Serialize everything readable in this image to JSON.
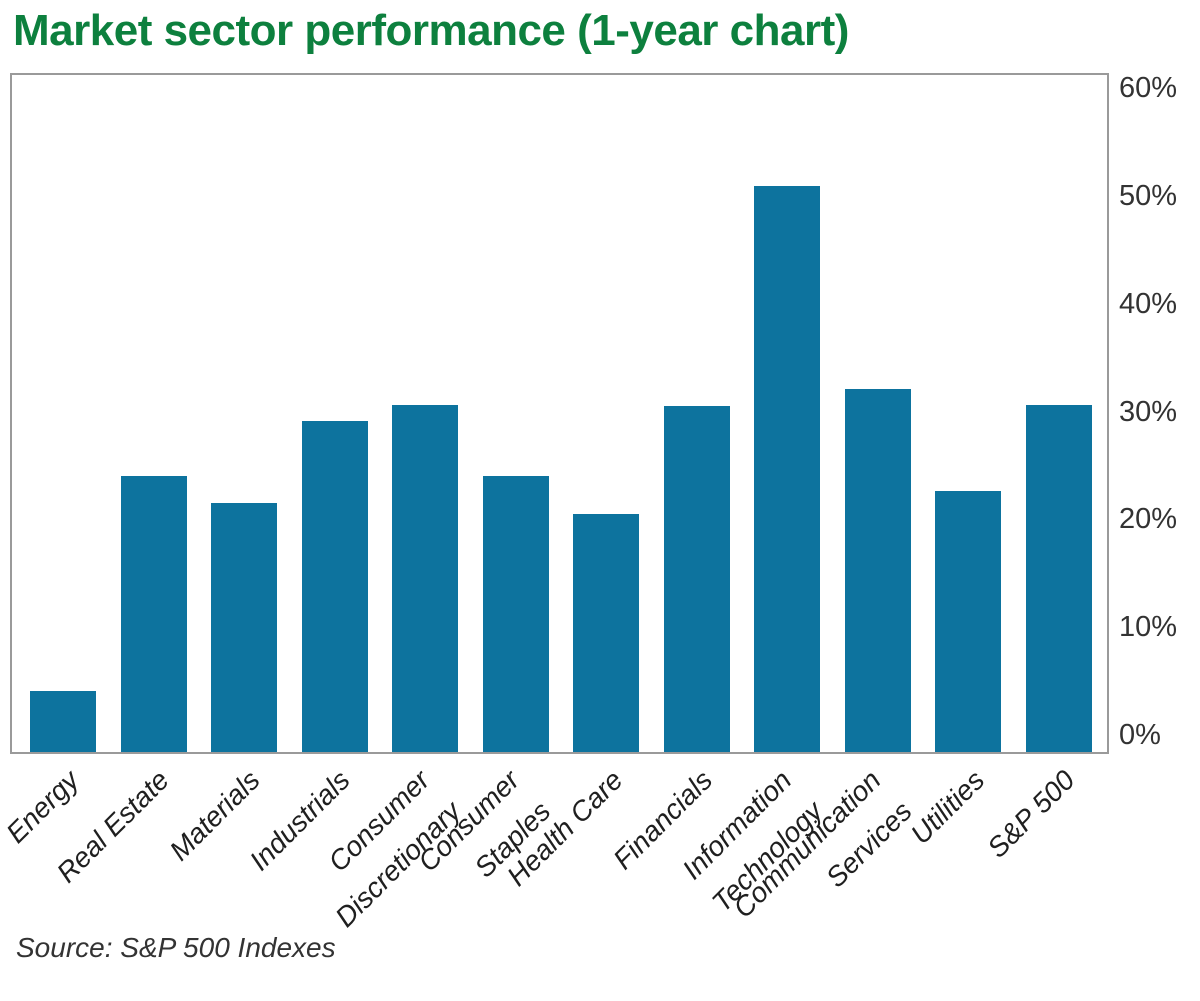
{
  "header": {
    "title": "Market sector performance (1-year chart)"
  },
  "footer": {
    "source": "Source: S&P 500 Indexes"
  },
  "colors": {
    "title_green": "#0d803e",
    "bar_teal": "#0d739e",
    "plot_border": "#9a9a9a",
    "axis_text": "#333333",
    "category_text": "#1f1f1f"
  },
  "chart_data": {
    "type": "bar",
    "title": "Market sector performance (1-year chart)",
    "categories": [
      "Energy",
      "Real Estate",
      "Materials",
      "Industrials",
      "Consumer Discretionary",
      "Consumer Staples",
      "Health Care",
      "Financials",
      "Information Technology",
      "Communication Services",
      "Utilities",
      "S&P 500"
    ],
    "category_lines": [
      [
        "Energy"
      ],
      [
        "Real Estate"
      ],
      [
        "Materials"
      ],
      [
        "Industrials"
      ],
      [
        "Consumer",
        "Discretionary"
      ],
      [
        "Consumer",
        "Staples"
      ],
      [
        "Health Care"
      ],
      [
        "Financials"
      ],
      [
        "Information",
        "Technology"
      ],
      [
        "Communication",
        "Services"
      ],
      [
        "Utilities"
      ],
      [
        "S&P 500"
      ]
    ],
    "values": [
      3.9,
      23.8,
      21.3,
      28.9,
      30.4,
      23.8,
      20.3,
      30.3,
      50.7,
      31.9,
      22.4,
      30.4
    ],
    "unit": "%",
    "ytick_values": [
      0,
      10,
      20,
      30,
      40,
      50,
      60
    ],
    "ytick_labels": [
      "0%",
      "10%",
      "20%",
      "30%",
      "40%",
      "50%",
      "60%"
    ],
    "ylim": [
      0,
      60
    ],
    "y_axis_side": "right",
    "x_label_rotation_deg": 45,
    "grid": false,
    "legend": false,
    "bar_color": "#0d739e",
    "source": "Source: S&P 500 Indexes"
  }
}
